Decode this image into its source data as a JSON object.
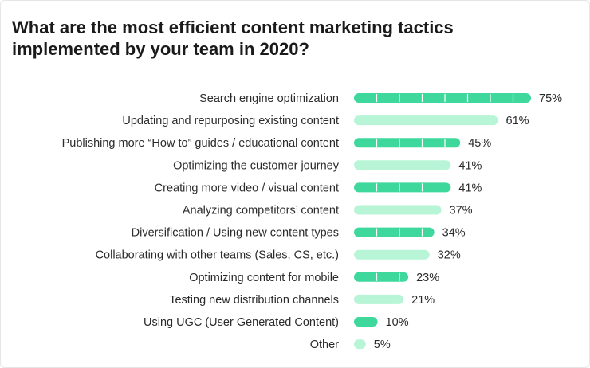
{
  "colors": {
    "dark_bar": "#3fd89c",
    "light_bar": "#b7f5d6",
    "segment_line": "#ffffff"
  },
  "chart_data": {
    "type": "bar",
    "orientation": "horizontal",
    "title": "What are the most efficient content marketing tactics implemented by your team in 2020?",
    "categories": [
      "Search engine optimization",
      "Updating and repurposing existing content",
      "Publishing more “How to” guides / educational content",
      "Optimizing the customer journey",
      "Creating more video / visual content",
      "Analyzing competitors’ content",
      "Diversification / Using new content types",
      "Collaborating with other teams (Sales, CS, etc.)",
      "Optimizing content for mobile",
      "Testing new distribution channels",
      "Using UGC (User Generated Content)",
      "Other"
    ],
    "values": [
      75,
      61,
      45,
      41,
      41,
      37,
      34,
      32,
      23,
      21,
      10,
      5
    ],
    "value_labels": [
      "75%",
      "61%",
      "45%",
      "41%",
      "41%",
      "37%",
      "34%",
      "32%",
      "23%",
      "21%",
      "10%",
      "5%"
    ],
    "bar_style": [
      "dark",
      "light",
      "dark",
      "light",
      "dark",
      "light",
      "dark",
      "light",
      "dark",
      "light",
      "dark",
      "light"
    ],
    "xlim": [
      0,
      75
    ],
    "xlabel": "",
    "ylabel": "",
    "grid": false,
    "legend": "none"
  }
}
